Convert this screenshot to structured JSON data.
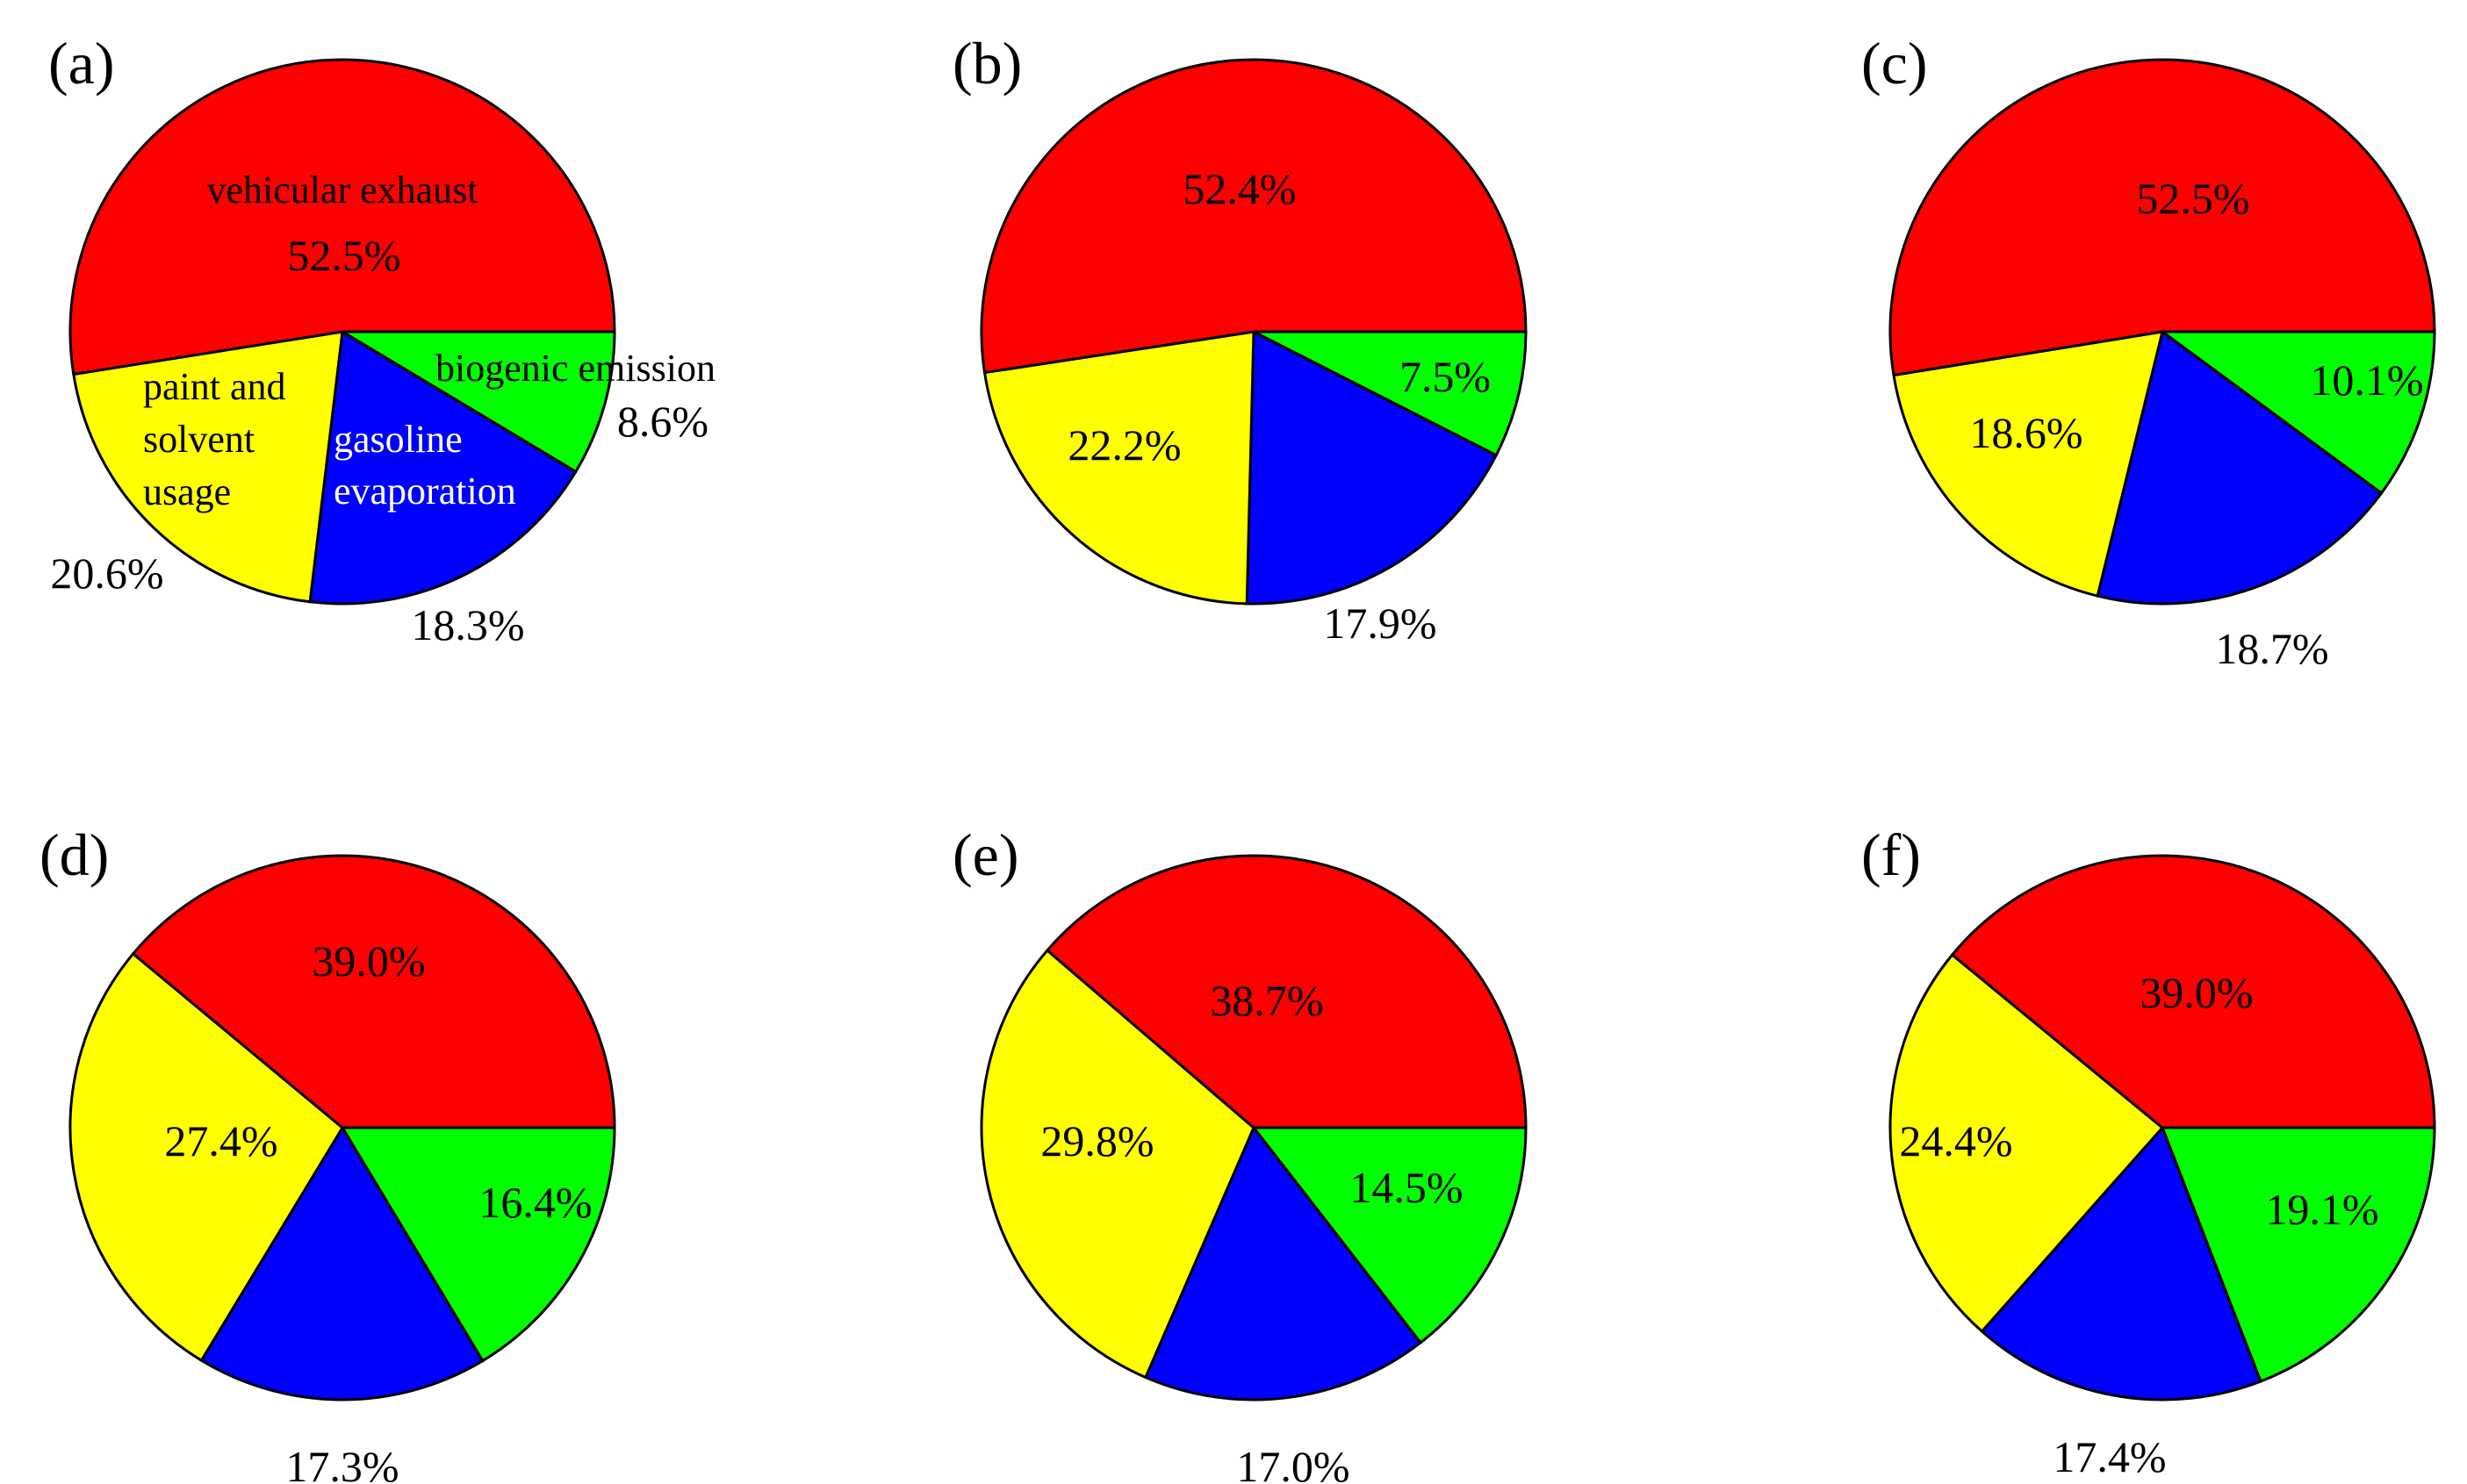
{
  "chart_data": [
    {
      "type": "pie",
      "panel": "(a)",
      "labels": [
        "vehicular exhaust",
        "biogenic emission",
        "gasoline evaporation",
        "paint and solvent usage"
      ],
      "values": [
        52.5,
        8.6,
        18.3,
        20.6
      ],
      "value_labels": [
        "52.5%",
        "8.6%",
        "18.3%",
        "20.6%"
      ],
      "colors": [
        "#ff0000",
        "#00ff00",
        "#0000ff",
        "#ffff00"
      ],
      "category_labels": {
        "vehicular": "vehicular exhaust",
        "biogenic": "biogenic emission",
        "gasoline_1": "gasoline",
        "gasoline_2": "evaporation",
        "paint_1": "paint and",
        "paint_2": "solvent",
        "paint_3": "usage"
      }
    },
    {
      "type": "pie",
      "panel": "(b)",
      "labels": [
        "vehicular exhaust",
        "biogenic emission",
        "gasoline evaporation",
        "paint and solvent usage"
      ],
      "values": [
        52.4,
        7.5,
        17.9,
        22.2
      ],
      "value_labels": [
        "52.4%",
        "7.5%",
        "17.9%",
        "22.2%"
      ],
      "colors": [
        "#ff0000",
        "#00ff00",
        "#0000ff",
        "#ffff00"
      ]
    },
    {
      "type": "pie",
      "panel": "(c)",
      "labels": [
        "vehicular exhaust",
        "biogenic emission",
        "gasoline evaporation",
        "paint and solvent usage"
      ],
      "values": [
        52.5,
        10.1,
        18.7,
        18.6
      ],
      "value_labels": [
        "52.5%",
        "10.1%",
        "18.7%",
        "18.6%"
      ],
      "colors": [
        "#ff0000",
        "#00ff00",
        "#0000ff",
        "#ffff00"
      ]
    },
    {
      "type": "pie",
      "panel": "(d)",
      "labels": [
        "vehicular exhaust",
        "biogenic emission",
        "gasoline evaporation",
        "paint and solvent usage"
      ],
      "values": [
        39.0,
        16.4,
        17.3,
        27.4
      ],
      "value_labels": [
        "39.0%",
        "16.4%",
        "17.3%",
        "27.4%"
      ],
      "colors": [
        "#ff0000",
        "#00ff00",
        "#0000ff",
        "#ffff00"
      ]
    },
    {
      "type": "pie",
      "panel": "(e)",
      "labels": [
        "vehicular exhaust",
        "biogenic emission",
        "gasoline evaporation",
        "paint and solvent usage"
      ],
      "values": [
        38.7,
        14.5,
        17.0,
        29.8
      ],
      "value_labels": [
        "38.7%",
        "14.5%",
        "17.0%",
        "29.8%"
      ],
      "colors": [
        "#ff0000",
        "#00ff00",
        "#0000ff",
        "#ffff00"
      ]
    },
    {
      "type": "pie",
      "panel": "(f)",
      "labels": [
        "vehicular exhaust",
        "biogenic emission",
        "gasoline evaporation",
        "paint and solvent usage"
      ],
      "values": [
        39.0,
        19.1,
        17.4,
        24.4
      ],
      "value_labels": [
        "39.0%",
        "19.1%",
        "17.4%",
        "24.4%"
      ],
      "colors": [
        "#ff0000",
        "#00ff00",
        "#0000ff",
        "#ffff00"
      ]
    }
  ]
}
